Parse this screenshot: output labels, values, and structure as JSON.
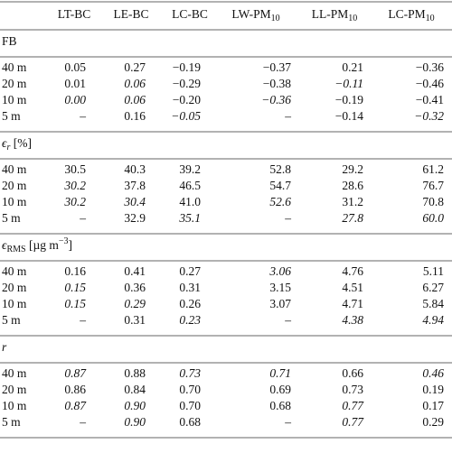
{
  "table": {
    "headers": [
      [
        {
          "text": "LT-BC"
        }
      ],
      [
        {
          "text": "LE-BC"
        }
      ],
      [
        {
          "text": "LC-BC"
        }
      ],
      [
        {
          "text": "LW-PM"
        },
        {
          "text": "10",
          "sub": true
        }
      ],
      [
        {
          "text": "LL-PM"
        },
        {
          "text": "10",
          "sub": true
        }
      ],
      [
        {
          "text": "LC-PM"
        },
        {
          "text": "10",
          "sub": true
        }
      ]
    ],
    "sections": [
      {
        "title": [
          {
            "text": "FB"
          }
        ],
        "rows": [
          {
            "label": "40 m",
            "cells": [
              "0.05",
              "0.27",
              "−0.19",
              "−0.37",
              "0.21",
              "−0.36"
            ],
            "italic": []
          },
          {
            "label": "20 m",
            "cells": [
              "0.01",
              "0.06",
              "−0.29",
              "−0.38",
              "−0.11",
              "−0.46"
            ],
            "italic": [
              1,
              4
            ]
          },
          {
            "label": "10 m",
            "cells": [
              "0.00",
              "0.06",
              "−0.20",
              "−0.36",
              "−0.19",
              "−0.41"
            ],
            "italic": [
              0,
              1,
              3
            ]
          },
          {
            "label": "5 m",
            "cells": [
              "–",
              "0.16",
              "−0.05",
              "–",
              "−0.14",
              "−0.32"
            ],
            "italic": [
              2,
              5
            ]
          }
        ]
      },
      {
        "title": [
          {
            "text": "ϵ",
            "italic": true
          },
          {
            "text": "r",
            "sub": true,
            "italic": true
          },
          {
            "text": " [%]"
          }
        ],
        "rows": [
          {
            "label": "40 m",
            "cells": [
              "30.5",
              "40.3",
              "39.2",
              "52.8",
              "29.2",
              "61.2"
            ],
            "italic": []
          },
          {
            "label": "20 m",
            "cells": [
              "30.2",
              "37.8",
              "46.5",
              "54.7",
              "28.6",
              "76.7"
            ],
            "italic": [
              0
            ]
          },
          {
            "label": "10 m",
            "cells": [
              "30.2",
              "30.4",
              "41.0",
              "52.6",
              "31.2",
              "70.8"
            ],
            "italic": [
              0,
              1,
              3
            ]
          },
          {
            "label": "5 m",
            "cells": [
              "–",
              "32.9",
              "35.1",
              "–",
              "27.8",
              "60.0"
            ],
            "italic": [
              2,
              4,
              5
            ]
          }
        ]
      },
      {
        "title": [
          {
            "text": "ϵ",
            "italic": true
          },
          {
            "text": "RMS",
            "sub": true
          },
          {
            "text": " [µg m"
          },
          {
            "text": "−3",
            "sup": true
          },
          {
            "text": "]"
          }
        ],
        "rows": [
          {
            "label": "40 m",
            "cells": [
              "0.16",
              "0.41",
              "0.27",
              "3.06",
              "4.76",
              "5.11"
            ],
            "italic": [
              3
            ]
          },
          {
            "label": "20 m",
            "cells": [
              "0.15",
              "0.36",
              "0.31",
              "3.15",
              "4.51",
              "6.27"
            ],
            "italic": [
              0
            ]
          },
          {
            "label": "10 m",
            "cells": [
              "0.15",
              "0.29",
              "0.26",
              "3.07",
              "4.71",
              "5.84"
            ],
            "italic": [
              0,
              1
            ]
          },
          {
            "label": "5 m",
            "cells": [
              "–",
              "0.31",
              "0.23",
              "–",
              "4.38",
              "4.94"
            ],
            "italic": [
              2,
              4,
              5
            ]
          }
        ]
      },
      {
        "title": [
          {
            "text": "r",
            "italic": true
          }
        ],
        "rows": [
          {
            "label": "40 m",
            "cells": [
              "0.87",
              "0.88",
              "0.73",
              "0.71",
              "0.66",
              "0.46"
            ],
            "italic": [
              0,
              2,
              3,
              5
            ]
          },
          {
            "label": "20 m",
            "cells": [
              "0.86",
              "0.84",
              "0.70",
              "0.69",
              "0.73",
              "0.19"
            ],
            "italic": []
          },
          {
            "label": "10 m",
            "cells": [
              "0.87",
              "0.90",
              "0.70",
              "0.68",
              "0.77",
              "0.17"
            ],
            "italic": [
              0,
              1,
              4
            ]
          },
          {
            "label": "5 m",
            "cells": [
              "–",
              "0.90",
              "0.68",
              "–",
              "0.77",
              "0.29"
            ],
            "italic": [
              1,
              4
            ]
          }
        ]
      }
    ]
  }
}
